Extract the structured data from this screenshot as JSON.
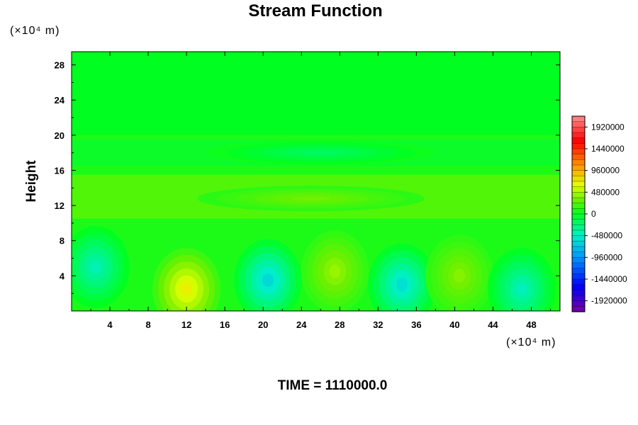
{
  "chart_data": {
    "type": "heatmap",
    "title": "Stream Function",
    "ylabel": "Height",
    "x_unit_label": "(×10⁴ m)",
    "y_unit_label": "(×10⁴ m)",
    "footer": "TIME = 1110000.0",
    "xlim": [
      0,
      51
    ],
    "ylim": [
      0,
      29.5
    ],
    "x_ticks": [
      4,
      8,
      12,
      16,
      20,
      24,
      28,
      32,
      36,
      40,
      44,
      48
    ],
    "y_ticks": [
      4,
      8,
      12,
      16,
      20,
      24,
      28
    ],
    "colorbar": {
      "range": [
        -2160000,
        2160000
      ],
      "labels": [
        1920000,
        1440000,
        960000,
        480000,
        0,
        -480000,
        -960000,
        -1440000,
        -1920000
      ]
    },
    "background_value": 80000,
    "features": [
      {
        "x": 2.5,
        "y": 5,
        "value": -420000
      },
      {
        "x": 12,
        "y": 2.5,
        "value": 700000
      },
      {
        "x": 20.5,
        "y": 3.5,
        "value": -600000
      },
      {
        "x": 27.5,
        "y": 4.5,
        "value": 430000
      },
      {
        "x": 34.5,
        "y": 3,
        "value": -560000
      },
      {
        "x": 40.5,
        "y": 4,
        "value": 380000
      },
      {
        "x": 47,
        "y": 2.5,
        "value": -440000
      },
      {
        "x": 25,
        "y": 12.8,
        "value": 330000
      },
      {
        "x": 26,
        "y": 18,
        "value": -180000
      }
    ]
  }
}
